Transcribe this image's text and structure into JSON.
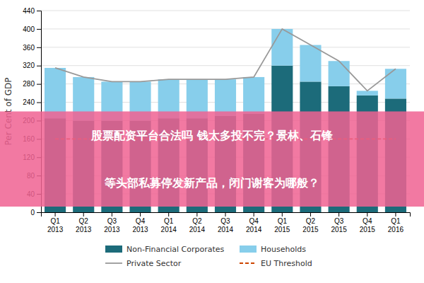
{
  "chart_data": {
    "type": "bar",
    "stacked": true,
    "categories": [
      "Q1\n2013",
      "Q2\n2013",
      "Q3\n2013",
      "Q4\n2013",
      "Q1\n2014",
      "Q2\n2014",
      "Q3\n2014",
      "Q4\n2014",
      "Q1\n2015",
      "Q2\n2015",
      "Q3\n2015",
      "Q4\n2015",
      "Q1\n2016"
    ],
    "series": [
      {
        "name": "Non-Financial Corporates",
        "type": "bar",
        "color": "#1c6b7a",
        "values": [
          205,
          200,
          200,
          200,
          205,
          205,
          210,
          215,
          320,
          285,
          275,
          255,
          248
        ]
      },
      {
        "name": "Households",
        "type": "bar",
        "color": "#87ceeb",
        "values": [
          110,
          95,
          85,
          85,
          85,
          85,
          80,
          80,
          80,
          80,
          55,
          10,
          65
        ]
      },
      {
        "name": "Private Sector",
        "type": "line",
        "color": "#999999",
        "values": [
          315,
          295,
          285,
          285,
          290,
          290,
          290,
          295,
          400,
          365,
          330,
          265,
          313
        ]
      },
      {
        "name": "EU Threshold",
        "type": "line",
        "color": "#cc4400",
        "line_style": "dashed",
        "values": [
          160,
          160,
          160,
          160,
          160,
          160,
          160,
          160,
          160,
          160,
          160,
          160,
          160
        ]
      }
    ],
    "ylabel": "Per Cent of GDP",
    "ylim": [
      0,
      440
    ],
    "yticks": [
      0,
      40,
      80,
      120,
      160,
      200,
      240,
      280,
      320,
      360,
      400,
      440
    ],
    "grid": true,
    "legend": "bottom",
    "annotations": [
      {
        "text": "股票配资平台合法吗 钱太多投不完？景林、石锋",
        "color": "#ffffff"
      },
      {
        "text": "等头部私募停发新产品，闭门谢客为哪般？",
        "color": "#ffffff"
      }
    ]
  }
}
